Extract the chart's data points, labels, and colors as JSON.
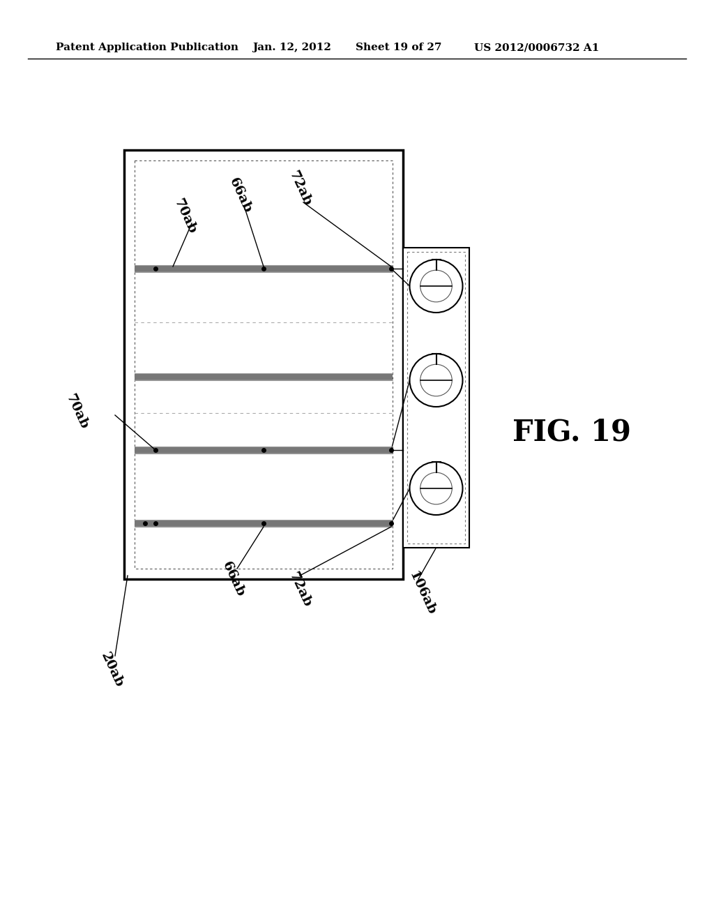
{
  "bg_color": "#ffffff",
  "header_text": "Patent Application Publication",
  "header_date": "Jan. 12, 2012",
  "header_sheet": "Sheet 19 of 27",
  "header_patent": "US 2012/0006732 A1",
  "fig_label": "FIG. 19",
  "label_20ab": "20ab",
  "label_70ab_upper": "70ab",
  "label_66ab_upper": "66ab",
  "label_72ab_upper": "72ab",
  "label_70ab_lower": "70ab",
  "label_66ab_lower": "66ab",
  "label_72ab_lower": "72ab",
  "label_106ab": "106ab",
  "line_color": "#000000"
}
